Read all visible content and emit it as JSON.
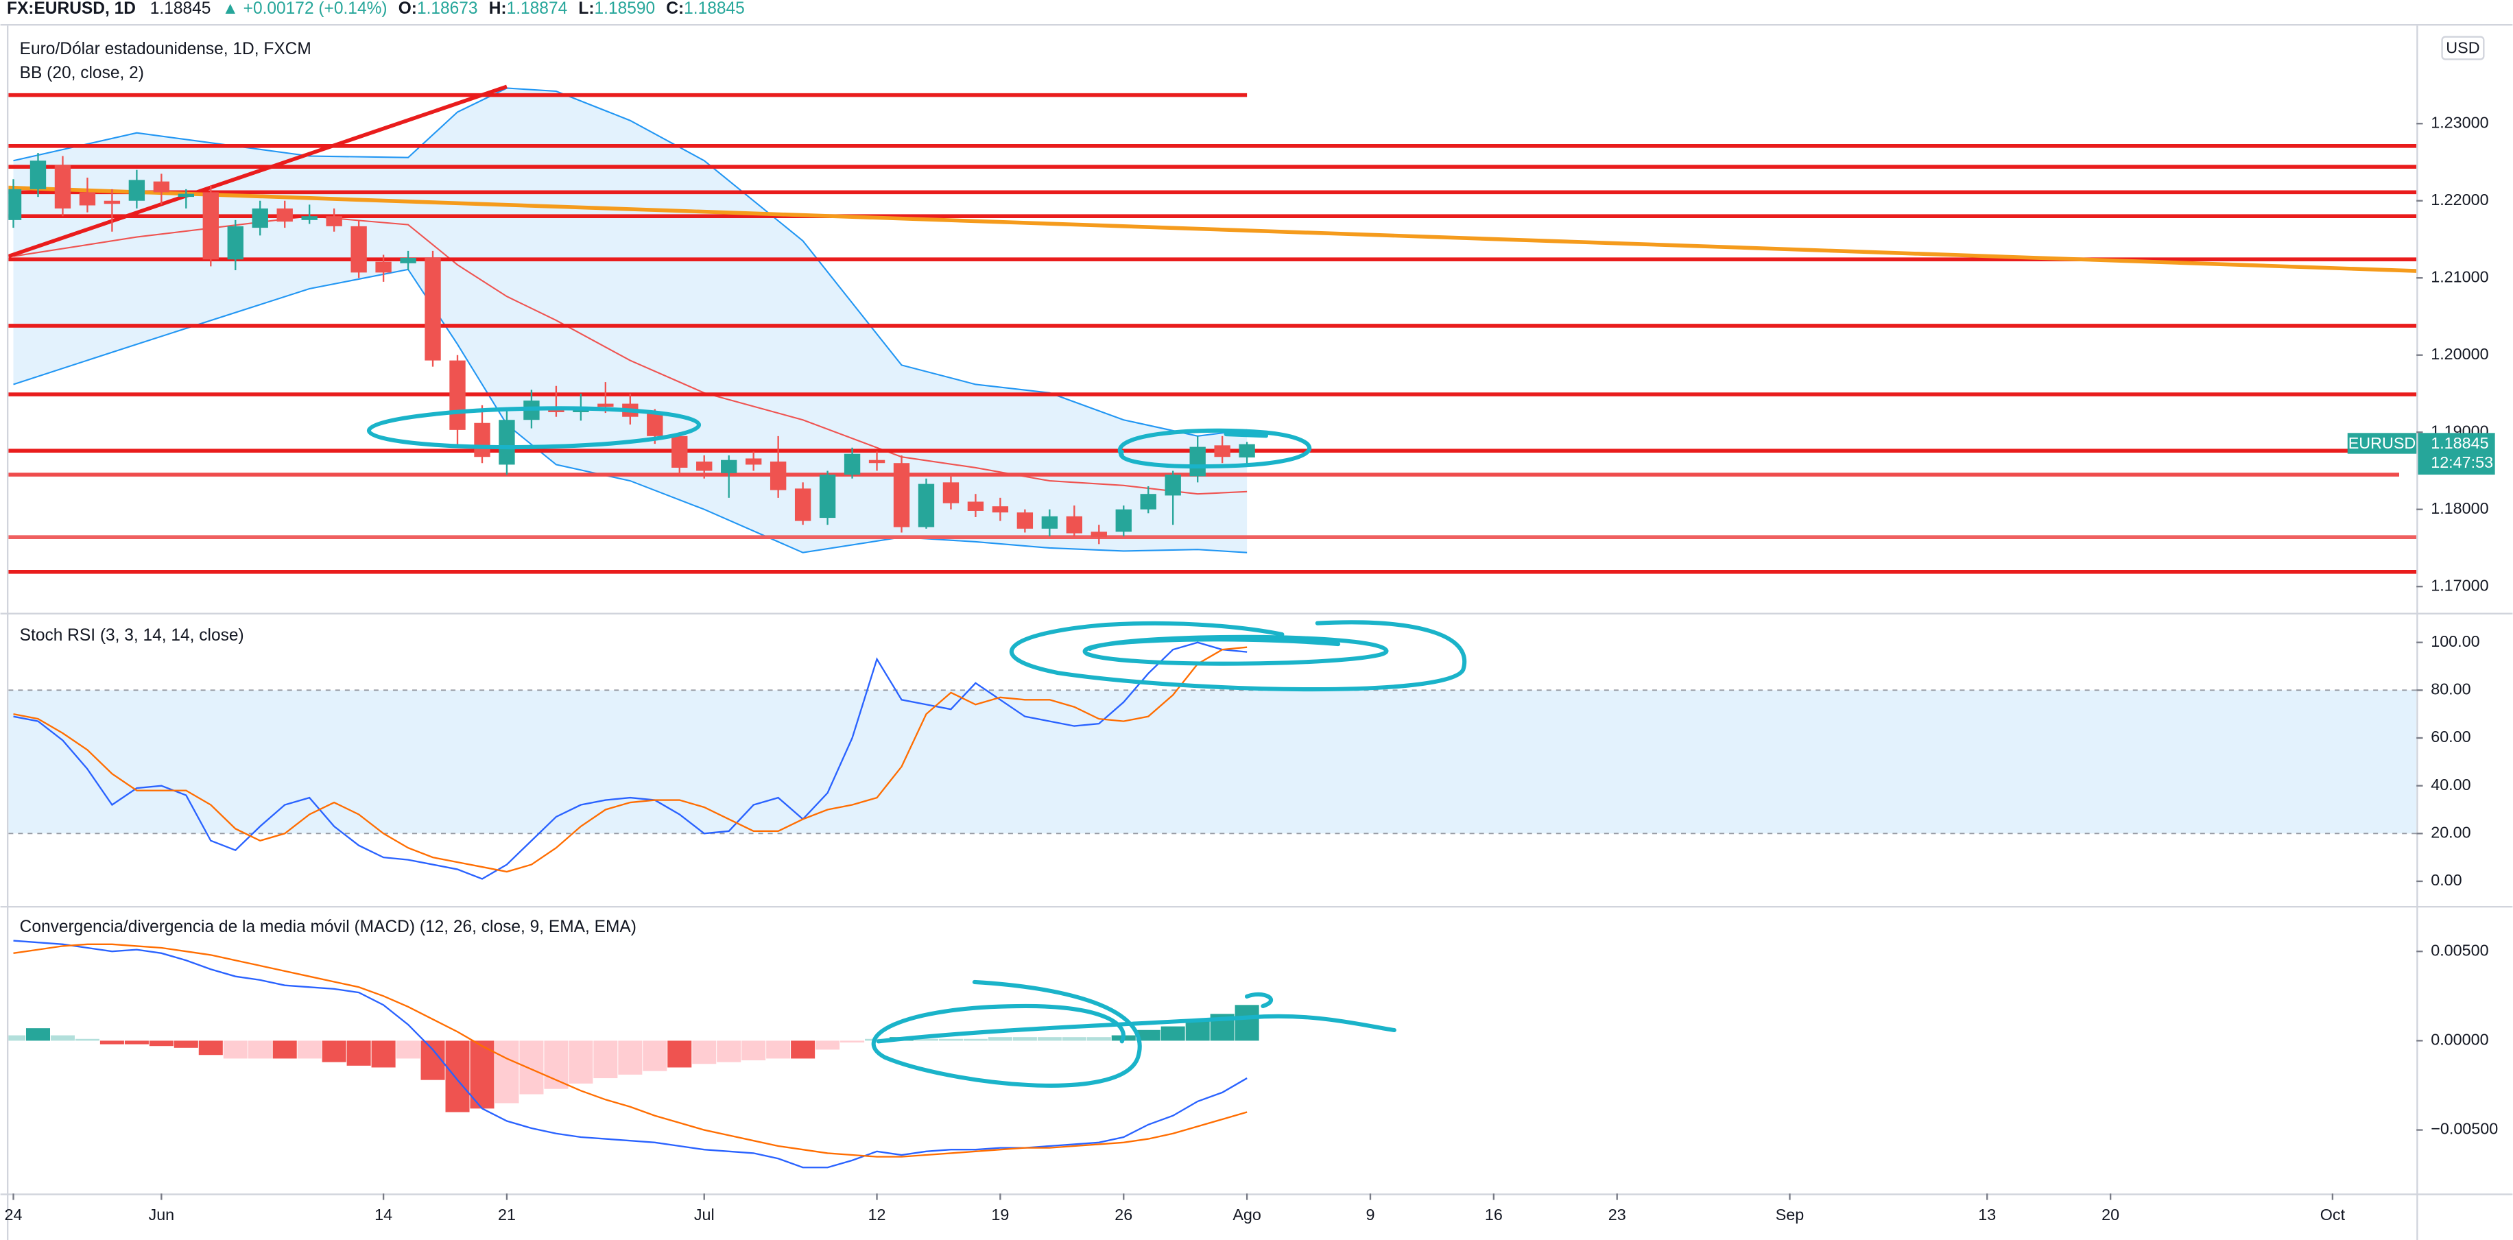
{
  "header": {
    "symbol": "FX:EURUSD, 1D",
    "price": "1.18845",
    "change": "▲ +0.00172 (+0.14%)",
    "ohlc": [
      {
        "label": "O:",
        "value": "1.18673"
      },
      {
        "label": "H:",
        "value": "1.18874"
      },
      {
        "label": "L:",
        "value": "1.18590"
      },
      {
        "label": "C:",
        "value": "1.18845"
      }
    ]
  },
  "chart_data": [
    {
      "type": "candlestick",
      "title": "Euro/Dólar estadounidense, 1D, FXCM",
      "subtitle": "BB (20, close, 2)",
      "currency": "USD",
      "xlim": [
        -0.2,
        97.4
      ],
      "xticks": [
        {
          "value": 0,
          "label": "24"
        },
        {
          "value": 6,
          "label": "Jun"
        },
        {
          "value": 15,
          "label": "14"
        },
        {
          "value": 20,
          "label": "21"
        },
        {
          "value": 28,
          "label": "Jul"
        },
        {
          "value": 35,
          "label": "12"
        },
        {
          "value": 40,
          "label": "19"
        },
        {
          "value": 45,
          "label": "26"
        },
        {
          "value": 50,
          "label": "Ago"
        },
        {
          "value": 55,
          "label": "9"
        },
        {
          "value": 60,
          "label": "16"
        },
        {
          "value": 65,
          "label": "23"
        },
        {
          "value": 72,
          "label": "Sep"
        },
        {
          "value": 80,
          "label": "13"
        },
        {
          "value": 85,
          "label": "20"
        },
        {
          "value": 94,
          "label": "Oct"
        }
      ],
      "ylim": [
        1.1667,
        1.2427
      ],
      "yticks": [
        {
          "value": 1.17,
          "label": "1.17000"
        },
        {
          "value": 1.18,
          "label": "1.18000"
        },
        {
          "value": 1.19,
          "label": "1.19000"
        },
        {
          "value": 1.2,
          "label": "1.20000"
        },
        {
          "value": 1.21,
          "label": "1.21000"
        },
        {
          "value": 1.22,
          "label": "1.22000"
        },
        {
          "value": 1.23,
          "label": "1.23000"
        }
      ],
      "up_color": "#26a69a",
      "down_color": "#ef5350",
      "x": [
        0,
        1,
        2,
        3,
        4,
        5,
        6,
        7,
        8,
        9,
        10,
        11,
        12,
        13,
        14,
        15,
        16,
        17,
        18,
        19,
        20,
        21,
        22,
        23,
        24,
        25,
        26,
        27,
        28,
        29,
        30,
        31,
        32,
        33,
        34,
        35,
        36,
        37,
        38,
        39,
        40,
        41,
        42,
        43,
        44,
        45,
        46,
        47,
        48,
        49,
        50
      ],
      "open": [
        1.2175,
        1.2215,
        1.2246,
        1.2211,
        1.22,
        1.22,
        1.2225,
        1.2205,
        1.2211,
        1.2124,
        1.2165,
        1.219,
        1.2175,
        1.218,
        1.2167,
        1.2121,
        1.2119,
        1.2126,
        1.1993,
        1.1912,
        1.1858,
        1.1916,
        1.1933,
        1.1926,
        1.1937,
        1.1937,
        1.1924,
        1.1895,
        1.1862,
        1.1847,
        1.1866,
        1.1862,
        1.1827,
        1.1789,
        1.1845,
        1.1864,
        1.186,
        1.1777,
        1.1835,
        1.181,
        1.1804,
        1.1796,
        1.1775,
        1.1791,
        1.1771,
        1.1771,
        1.18,
        1.1818,
        1.1843,
        1.1883,
        1.18673
      ],
      "high": [
        1.2228,
        1.2262,
        1.2258,
        1.223,
        1.2215,
        1.224,
        1.2235,
        1.2215,
        1.222,
        1.2175,
        1.22,
        1.22,
        1.2195,
        1.219,
        1.2175,
        1.213,
        1.2135,
        1.2135,
        1.2,
        1.1935,
        1.193,
        1.1955,
        1.196,
        1.195,
        1.1965,
        1.195,
        1.193,
        1.19,
        1.187,
        1.187,
        1.1875,
        1.1895,
        1.1835,
        1.185,
        1.188,
        1.1875,
        1.187,
        1.184,
        1.1845,
        1.182,
        1.1815,
        1.18,
        1.18,
        1.1805,
        1.178,
        1.1805,
        1.183,
        1.185,
        1.1895,
        1.1895,
        1.18874
      ],
      "low": [
        1.2165,
        1.2205,
        1.218,
        1.2185,
        1.216,
        1.219,
        1.2195,
        1.219,
        1.2115,
        1.211,
        1.2155,
        1.2165,
        1.217,
        1.216,
        1.21,
        1.2095,
        1.211,
        1.1985,
        1.188,
        1.186,
        1.1845,
        1.1905,
        1.192,
        1.1915,
        1.1925,
        1.191,
        1.1885,
        1.1845,
        1.184,
        1.1815,
        1.185,
        1.1815,
        1.178,
        1.178,
        1.184,
        1.185,
        1.177,
        1.1775,
        1.18,
        1.179,
        1.1785,
        1.177,
        1.1765,
        1.1765,
        1.1755,
        1.1765,
        1.1795,
        1.178,
        1.1835,
        1.186,
        1.1859
      ],
      "close": [
        1.2215,
        1.2252,
        1.219,
        1.2194,
        1.2196,
        1.2227,
        1.2211,
        1.2209,
        1.2124,
        1.2167,
        1.219,
        1.2173,
        1.218,
        1.2167,
        1.2107,
        1.2107,
        1.2126,
        1.1993,
        1.1903,
        1.1868,
        1.1916,
        1.1941,
        1.1926,
        1.193,
        1.1933,
        1.192,
        1.1895,
        1.1854,
        1.185,
        1.1864,
        1.1858,
        1.1825,
        1.1785,
        1.1845,
        1.1872,
        1.186,
        1.1777,
        1.1833,
        1.1808,
        1.1798,
        1.1796,
        1.1775,
        1.1791,
        1.1769,
        1.1764,
        1.18,
        1.182,
        1.1845,
        1.1881,
        1.1868,
        1.18845
      ],
      "band_fill": "#e3f2fd",
      "overlays": [
        {
          "color": "#2196f3",
          "x": [
            0,
            5,
            12,
            16,
            18,
            20,
            22,
            25,
            28,
            32,
            36,
            39,
            42,
            45,
            48,
            50
          ],
          "values": [
            1.2252,
            1.2288,
            1.2258,
            1.2256,
            1.2315,
            1.2346,
            1.2342,
            1.2304,
            1.2252,
            1.2148,
            1.1987,
            1.1962,
            1.1951,
            1.1916,
            1.1895,
            1.1903
          ]
        },
        {
          "color": "#ef5350",
          "x": [
            0,
            5,
            12,
            16,
            18,
            20,
            22,
            25,
            28,
            32,
            36,
            39,
            42,
            45,
            48,
            50
          ],
          "values": [
            1.2128,
            1.2153,
            1.218,
            1.2169,
            1.2117,
            1.2076,
            1.2045,
            1.1993,
            1.1951,
            1.1916,
            1.1868,
            1.1854,
            1.1837,
            1.1831,
            1.182,
            1.1823
          ]
        },
        {
          "color": "#2196f3",
          "x": [
            0,
            5,
            12,
            16,
            18,
            20,
            22,
            25,
            28,
            32,
            36,
            39,
            42,
            45,
            48,
            50
          ],
          "values": [
            1.1962,
            1.2014,
            1.2086,
            1.2111,
            1.2014,
            1.191,
            1.1858,
            1.1837,
            1.18,
            1.1744,
            1.1764,
            1.1758,
            1.175,
            1.1746,
            1.1748,
            1.1744
          ]
        }
      ],
      "levels": [
        {
          "value": 1.2337,
          "x": [
            -0.2,
            50
          ],
          "color": "#e91c1c"
        },
        {
          "value": 1.2271,
          "x": [
            -0.2,
            97.4
          ],
          "color": "#e91c1c"
        },
        {
          "value": 1.2244,
          "x": [
            -0.2,
            97.4
          ],
          "color": "#e91c1c"
        },
        {
          "value": 1.2211,
          "x": [
            -0.2,
            97.4
          ],
          "color": "#e91c1c"
        },
        {
          "value": 1.218,
          "x": [
            -0.2,
            97.4
          ],
          "color": "#e91c1c"
        },
        {
          "value": 1.2124,
          "x": [
            -0.2,
            97.4
          ],
          "color": "#e91c1c"
        },
        {
          "value": 1.2038,
          "x": [
            -0.2,
            97.4
          ],
          "color": "#e91c1c"
        },
        {
          "value": 1.1949,
          "x": [
            -0.2,
            97.4
          ],
          "color": "#e91c1c"
        },
        {
          "value": 1.1876,
          "x": [
            -0.2,
            97.4
          ],
          "color": "#e91c1c"
        },
        {
          "value": 1.1845,
          "x": [
            -0.2,
            96.7
          ],
          "color": "#ef4b4b"
        },
        {
          "value": 1.1764,
          "x": [
            -0.2,
            97.4
          ],
          "color": "#ef5f5f"
        },
        {
          "value": 1.1719,
          "x": [
            -0.2,
            97.4
          ],
          "color": "#e91c1c"
        }
      ],
      "trendlines": [
        {
          "x": [
            -0.2,
            20
          ],
          "values": [
            1.2128,
            1.2348
          ],
          "color": "#e91c1c"
        },
        {
          "x": [
            -0.2,
            97.4
          ],
          "values": [
            1.2217,
            1.2109
          ],
          "color": "#f59b1c"
        }
      ],
      "last_label": {
        "name": "EURUSD",
        "countdown": "12:47:53",
        "color": "#26a69a"
      }
    },
    {
      "type": "line",
      "title": "Stoch RSI (3, 3, 14, 14, close)",
      "ylim": [
        -10,
        111.4
      ],
      "yticks": [
        {
          "value": 0,
          "label": "0.00"
        },
        {
          "value": 20,
          "label": "20.00"
        },
        {
          "value": 40,
          "label": "40.00"
        },
        {
          "value": 60,
          "label": "60.00"
        },
        {
          "value": 80,
          "label": "80.00"
        },
        {
          "value": 100,
          "label": "100.00"
        }
      ],
      "band": [
        20,
        80
      ],
      "band_fill": "#e3f2fd",
      "x": [
        0,
        1,
        2,
        3,
        4,
        5,
        6,
        7,
        8,
        9,
        10,
        11,
        12,
        13,
        14,
        15,
        16,
        17,
        18,
        19,
        20,
        21,
        22,
        23,
        24,
        25,
        26,
        27,
        28,
        29,
        30,
        31,
        32,
        33,
        34,
        35,
        36,
        37,
        38,
        39,
        40,
        41,
        42,
        43,
        44,
        45,
        46,
        47,
        48,
        49,
        50
      ],
      "series": [
        {
          "color": "#2962ff",
          "values": [
            69,
            67,
            59,
            47,
            32,
            39,
            40,
            36,
            17,
            13,
            23,
            32,
            35,
            23,
            15,
            10,
            9,
            7,
            5,
            1,
            7,
            17,
            27,
            32,
            34,
            35,
            34,
            28,
            20,
            21,
            32,
            35,
            26,
            37,
            60,
            93,
            76,
            74,
            72,
            83,
            76,
            69,
            67,
            65,
            66,
            75,
            87,
            97,
            100,
            97,
            96
          ]
        },
        {
          "color": "#ff6d00",
          "values": [
            70,
            68,
            62,
            55,
            45,
            38,
            38,
            38,
            32,
            22,
            17,
            20,
            28,
            33,
            28,
            20,
            14,
            10,
            8,
            6,
            4,
            7,
            14,
            23,
            30,
            33,
            34,
            34,
            31,
            26,
            21,
            21,
            26,
            30,
            32,
            35,
            48,
            70,
            79,
            74,
            77,
            76,
            76,
            73,
            68,
            67,
            69,
            78,
            91,
            97,
            98
          ]
        }
      ]
    },
    {
      "type": "macd",
      "title": "Convergencia/divergencia de la media móvil (MACD) (12, 26, close, 9, EMA, EMA)",
      "ylim": [
        -0.00856,
        0.00741
      ],
      "yticks": [
        {
          "value": -0.005,
          "label": "−0.00500"
        },
        {
          "value": 0,
          "label": "0.00000"
        },
        {
          "value": 0.005,
          "label": "0.00500"
        }
      ],
      "x": [
        0,
        1,
        2,
        3,
        4,
        5,
        6,
        7,
        8,
        9,
        10,
        11,
        12,
        13,
        14,
        15,
        16,
        17,
        18,
        19,
        20,
        21,
        22,
        23,
        24,
        25,
        26,
        27,
        28,
        29,
        30,
        31,
        32,
        33,
        34,
        35,
        36,
        37,
        38,
        39,
        40,
        41,
        42,
        43,
        44,
        45,
        46,
        47,
        48,
        49,
        50
      ],
      "histogram": {
        "values": [
          0.0003,
          0.0007,
          0.0003,
          0.0001,
          -0.0002,
          -0.0002,
          -0.0003,
          -0.0004,
          -0.0008,
          -0.001,
          -0.001,
          -0.001,
          -0.001,
          -0.0012,
          -0.0014,
          -0.0015,
          -0.001,
          -0.0022,
          -0.004,
          -0.0038,
          -0.0035,
          -0.003,
          -0.0027,
          -0.0024,
          -0.0021,
          -0.0019,
          -0.0017,
          -0.0015,
          -0.0013,
          -0.0012,
          -0.0011,
          -0.001,
          -0.001,
          -0.0005,
          -0.0001,
          0.0001,
          0.0002,
          0.0001,
          0.0001,
          0.0001,
          0.0002,
          0.0002,
          0.0002,
          0.0002,
          0.0002,
          0.0003,
          0.0006,
          0.0008,
          0.0011,
          0.0015,
          0.002
        ],
        "colors": [
          "#b2dfdb",
          "#26a69a",
          "#b2dfdb",
          "#b2dfdb",
          "#ef5350",
          "#ef5350",
          "#ef5350",
          "#ef5350",
          "#ef5350",
          "#ffcdd2",
          "#ffcdd2",
          "#ef5350",
          "#ffcdd2",
          "#ef5350",
          "#ef5350",
          "#ef5350",
          "#ffcdd2",
          "#ef5350",
          "#ef5350",
          "#ef5350",
          "#ffcdd2",
          "#ffcdd2",
          "#ffcdd2",
          "#ffcdd2",
          "#ffcdd2",
          "#ffcdd2",
          "#ffcdd2",
          "#ef5350",
          "#ffcdd2",
          "#ffcdd2",
          "#ffcdd2",
          "#ffcdd2",
          "#ef5350",
          "#ffcdd2",
          "#ffcdd2",
          "#b2dfdb",
          "#26a69a",
          "#b2dfdb",
          "#b2dfdb",
          "#b2dfdb",
          "#b2dfdb",
          "#b2dfdb",
          "#b2dfdb",
          "#b2dfdb",
          "#b2dfdb",
          "#26a69a",
          "#26a69a",
          "#26a69a",
          "#26a69a",
          "#26a69a",
          "#26a69a"
        ]
      },
      "series": [
        {
          "color": "#2962ff",
          "values": [
            0.0056,
            0.0055,
            0.0054,
            0.0052,
            0.005,
            0.0051,
            0.0049,
            0.0045,
            0.004,
            0.0036,
            0.0034,
            0.0031,
            0.003,
            0.0029,
            0.0027,
            0.002,
            0.0009,
            -0.0005,
            -0.0022,
            -0.0038,
            -0.0045,
            -0.0049,
            -0.0052,
            -0.0054,
            -0.0055,
            -0.0056,
            -0.0057,
            -0.0059,
            -0.0061,
            -0.0062,
            -0.0063,
            -0.0066,
            -0.0071,
            -0.0071,
            -0.0067,
            -0.0062,
            -0.0064,
            -0.0062,
            -0.0061,
            -0.0061,
            -0.006,
            -0.006,
            -0.0059,
            -0.0058,
            -0.0057,
            -0.0054,
            -0.0047,
            -0.0042,
            -0.0034,
            -0.0029,
            -0.0021
          ]
        },
        {
          "color": "#ff6d00",
          "values": [
            0.0049,
            0.0051,
            0.0053,
            0.0054,
            0.0054,
            0.0053,
            0.0052,
            0.005,
            0.0048,
            0.0045,
            0.0042,
            0.0039,
            0.0036,
            0.0033,
            0.003,
            0.0025,
            0.0019,
            0.0012,
            0.0005,
            -0.0003,
            -0.001,
            -0.0016,
            -0.0022,
            -0.0028,
            -0.0033,
            -0.0037,
            -0.0042,
            -0.0046,
            -0.005,
            -0.0053,
            -0.0056,
            -0.0059,
            -0.0061,
            -0.0063,
            -0.0064,
            -0.0065,
            -0.0065,
            -0.0064,
            -0.0063,
            -0.0062,
            -0.0061,
            -0.006,
            -0.006,
            -0.0059,
            -0.0058,
            -0.0057,
            -0.0055,
            -0.0052,
            -0.0048,
            -0.0044,
            -0.004
          ]
        }
      ]
    }
  ]
}
